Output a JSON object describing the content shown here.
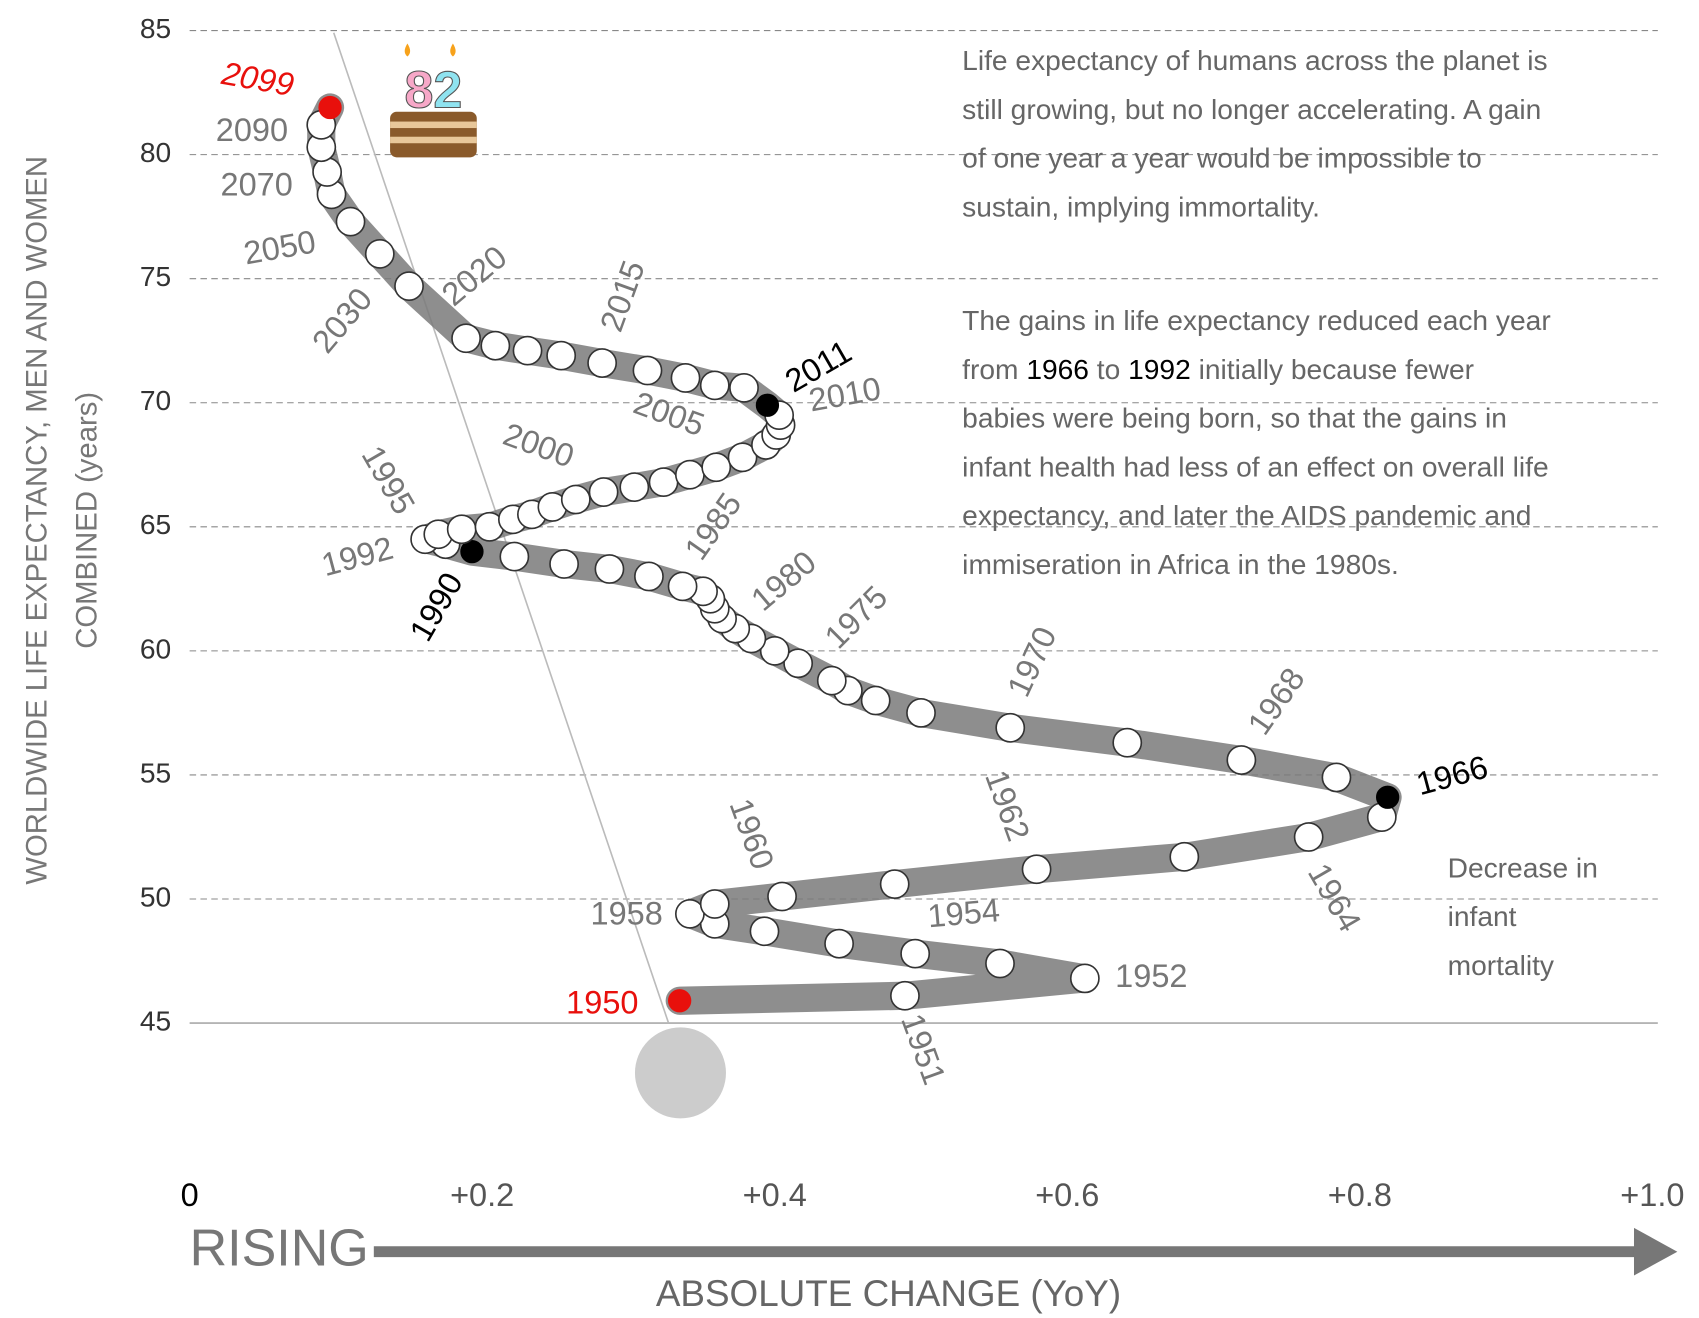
{
  "chart_data": {
    "type": "scatter",
    "y_label": [
      "WORLDWIDE LIFE EXPECTANCY, MEN AND WOMEN",
      "COMBINED (years)"
    ],
    "x_label": "ABSOLUTE CHANGE (YoY)",
    "direction_label": "RISING",
    "cake_text": "82",
    "xlim": [
      0,
      1
    ],
    "ylim": [
      45,
      85
    ],
    "xticks": [
      0,
      {
        "value": 0.2,
        "label": "+0.2"
      },
      {
        "value": 0.4,
        "label": "+0.4"
      },
      {
        "value": 0.6,
        "label": "+0.6"
      },
      {
        "value": 0.8,
        "label": "+0.8"
      },
      {
        "value": 1,
        "label": "+1.0"
      }
    ],
    "yticks": [
      45,
      50,
      55,
      60,
      65,
      70,
      75,
      80,
      85
    ],
    "grid": true,
    "line_color": "#7a7a7a",
    "x": [
      0.335,
      0.489,
      0.612,
      0.554,
      0.496,
      0.444,
      0.393,
      0.359,
      0.342,
      0.359,
      0.405,
      0.482,
      0.579,
      0.68,
      0.765,
      0.815,
      0.819,
      0.784,
      0.719,
      0.641,
      0.561,
      0.5,
      0.469,
      0.45,
      0.439,
      0.416,
      0.4,
      0.384,
      0.373,
      0.364,
      0.359,
      0.356,
      0.351,
      0.337,
      0.314,
      0.287,
      0.256,
      0.222,
      0.193,
      0.175,
      0.161,
      0.17,
      0.186,
      0.205,
      0.221,
      0.234,
      0.248,
      0.264,
      0.283,
      0.304,
      0.324,
      0.342,
      0.36,
      0.378,
      0.394,
      0.401,
      0.404,
      0.403,
      0.395,
      0.379,
      0.359,
      0.339,
      0.313,
      0.282,
      0.254,
      0.231,
      0.209,
      0.189,
      0.15,
      0.13,
      0.11,
      0.097,
      0.094,
      0.09,
      0.09,
      0.096
    ],
    "y": [
      45.9,
      46.1,
      46.8,
      47.4,
      47.8,
      48.2,
      48.7,
      49.0,
      49.4,
      49.8,
      50.1,
      50.6,
      51.2,
      51.7,
      52.5,
      53.3,
      54.1,
      54.9,
      55.6,
      56.3,
      56.9,
      57.5,
      58.0,
      58.4,
      58.8,
      59.5,
      60.0,
      60.5,
      60.9,
      61.3,
      61.7,
      62.1,
      62.4,
      62.6,
      63.0,
      63.3,
      63.5,
      63.8,
      64.0,
      64.3,
      64.5,
      64.7,
      64.9,
      65.0,
      65.3,
      65.5,
      65.8,
      66.1,
      66.4,
      66.6,
      66.8,
      67.1,
      67.4,
      67.8,
      68.3,
      68.7,
      69.1,
      69.5,
      69.9,
      70.6,
      70.7,
      71.0,
      71.3,
      71.6,
      71.9,
      72.1,
      72.3,
      72.6,
      74.7,
      76.0,
      77.3,
      78.4,
      79.3,
      80.3,
      81.2,
      81.9
    ],
    "point_labels": [
      "1950",
      "1951",
      "1952",
      null,
      "1954",
      null,
      null,
      null,
      "1958",
      null,
      "1960",
      null,
      "1962",
      null,
      "1964",
      null,
      "1966",
      null,
      "1968",
      null,
      "1970",
      null,
      null,
      null,
      null,
      "1975",
      null,
      null,
      null,
      null,
      "1980",
      null,
      null,
      null,
      "1985",
      null,
      null,
      null,
      "1990",
      null,
      "1992",
      "1995",
      null,
      null,
      null,
      null,
      null,
      "2000",
      null,
      null,
      null,
      "2005",
      null,
      null,
      null,
      null,
      null,
      "2010",
      "2011",
      null,
      null,
      null,
      "2015",
      null,
      null,
      null,
      null,
      "2020",
      "2030",
      null,
      "2050",
      null,
      "2070",
      null,
      "2090",
      "2099"
    ],
    "point_colors": [
      "#e8100c",
      "#ffffff",
      "#ffffff",
      "#ffffff",
      "#ffffff",
      "#ffffff",
      "#ffffff",
      "#ffffff",
      "#ffffff",
      "#ffffff",
      "#ffffff",
      "#ffffff",
      "#ffffff",
      "#ffffff",
      "#ffffff",
      "#ffffff",
      "#000000",
      "#ffffff",
      "#ffffff",
      "#ffffff",
      "#ffffff",
      "#ffffff",
      "#ffffff",
      "#ffffff",
      "#ffffff",
      "#ffffff",
      "#ffffff",
      "#ffffff",
      "#ffffff",
      "#ffffff",
      "#ffffff",
      "#ffffff",
      "#ffffff",
      "#ffffff",
      "#ffffff",
      "#ffffff",
      "#ffffff",
      "#ffffff",
      "#000000",
      "#ffffff",
      "#ffffff",
      "#ffffff",
      "#ffffff",
      "#ffffff",
      "#ffffff",
      "#ffffff",
      "#ffffff",
      "#ffffff",
      "#ffffff",
      "#ffffff",
      "#ffffff",
      "#ffffff",
      "#ffffff",
      "#ffffff",
      "#ffffff",
      "#ffffff",
      "#ffffff",
      "#ffffff",
      "#000000",
      "#ffffff",
      "#ffffff",
      "#ffffff",
      "#ffffff",
      "#ffffff",
      "#ffffff",
      "#ffffff",
      "#ffffff",
      "#ffffff",
      "#ffffff",
      "#ffffff",
      "#ffffff",
      "#ffffff",
      "#ffffff",
      "#ffffff",
      "#ffffff",
      "#e8100c"
    ],
    "annotations": [
      [
        [
          "Life expectancy of humans across the planet is"
        ],
        [
          "still growing, but no longer accelerating. A gain"
        ],
        [
          "of one year a year would be impossible to"
        ],
        [
          "sustain, implying immortality."
        ]
      ],
      [
        [
          "The gains in life expectancy reduced each year"
        ],
        [
          "from ",
          "1966",
          " to ",
          "1992",
          " initially because fewer"
        ],
        [
          "babies were being born, so that the gains in"
        ],
        [
          "infant health had less of an effect on overall life"
        ],
        [
          "expectancy, and later the AIDS pandemic and"
        ],
        [
          "immiseration in Africa in the 1980s."
        ]
      ],
      [
        [
          "Decrease in"
        ],
        [
          "infant"
        ],
        [
          "mortality"
        ]
      ]
    ]
  }
}
